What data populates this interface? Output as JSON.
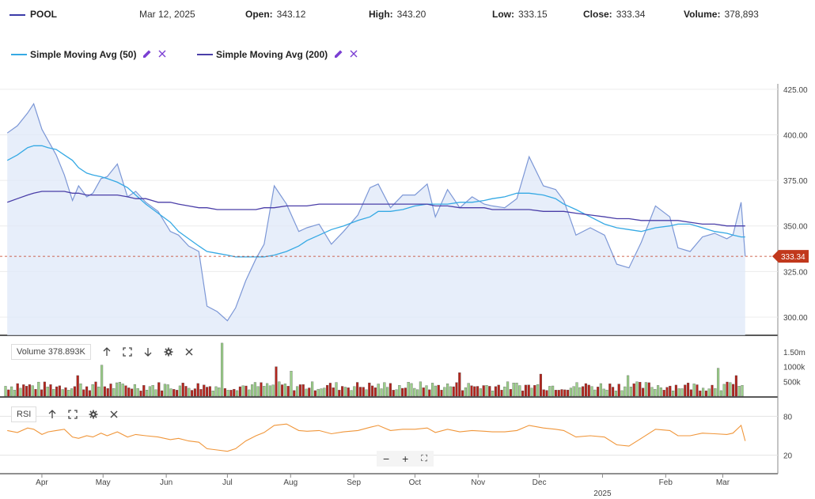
{
  "header": {
    "symbol": "POOL",
    "date": "Mar 12, 2025",
    "open_label": "Open:",
    "open": "343.12",
    "high_label": "High:",
    "high": "343.20",
    "low_label": "Low:",
    "low": "333.15",
    "close_label": "Close:",
    "close": "333.34",
    "volume_label": "Volume:",
    "volume": "378,893"
  },
  "legend": [
    {
      "label": "Simple Moving Avg (50)",
      "color": "#35a9e4"
    },
    {
      "label": "Simple Moving Avg (200)",
      "color": "#4a3ea8"
    }
  ],
  "colors": {
    "price_line": "#7c97d6",
    "price_fill": "#dfe8f8",
    "sma50": "#35a9e4",
    "sma200": "#4a3ea8",
    "rsi": "#f0963a",
    "vol_up": "#9ccf8a",
    "vol_down": "#b3261e",
    "last_tag": "#c1381c",
    "accent": "#7b3fd3"
  },
  "volume_pane": {
    "title": "Volume 378.893K",
    "ticks": [
      "1.50m",
      "1000k",
      "500k"
    ]
  },
  "rsi_pane": {
    "title": "RSI",
    "ticks": [
      "80",
      "20"
    ]
  },
  "price_axis": {
    "ticks": [
      "425.00",
      "400.00",
      "375.00",
      "350.00",
      "325.00",
      "300.00"
    ],
    "last_price": "333.34"
  },
  "x_axis": {
    "months": [
      "Apr",
      "May",
      "Jun",
      "Jul",
      "Aug",
      "Sep",
      "Oct",
      "Nov",
      "Dec",
      "2025",
      "Feb",
      "Mar"
    ],
    "year_label": "2025"
  },
  "zoom": {
    "minus": "−",
    "plus": "+",
    "reset": "⛶"
  },
  "chart_data": {
    "type": "line",
    "ylim": [
      290,
      428
    ],
    "dates": [
      "2024-03-15",
      "2024-03-20",
      "2024-03-25",
      "2024-03-28",
      "2024-04-01",
      "2024-04-04",
      "2024-04-08",
      "2024-04-12",
      "2024-04-16",
      "2024-04-19",
      "2024-04-23",
      "2024-04-26",
      "2024-04-30",
      "2024-05-03",
      "2024-05-08",
      "2024-05-13",
      "2024-05-17",
      "2024-05-22",
      "2024-05-28",
      "2024-06-03",
      "2024-06-07",
      "2024-06-12",
      "2024-06-17",
      "2024-06-21",
      "2024-06-26",
      "2024-07-01",
      "2024-07-05",
      "2024-07-10",
      "2024-07-15",
      "2024-07-19",
      "2024-07-24",
      "2024-07-30",
      "2024-08-05",
      "2024-08-09",
      "2024-08-15",
      "2024-08-21",
      "2024-08-27",
      "2024-09-03",
      "2024-09-09",
      "2024-09-13",
      "2024-09-19",
      "2024-09-25",
      "2024-10-01",
      "2024-10-07",
      "2024-10-11",
      "2024-10-17",
      "2024-10-23",
      "2024-10-29",
      "2024-11-04",
      "2024-11-08",
      "2024-11-14",
      "2024-11-20",
      "2024-11-26",
      "2024-12-03",
      "2024-12-09",
      "2024-12-13",
      "2024-12-19",
      "2024-12-26",
      "2025-01-02",
      "2025-01-08",
      "2025-01-14",
      "2025-01-20",
      "2025-01-27",
      "2025-02-03",
      "2025-02-07",
      "2025-02-13",
      "2025-02-19",
      "2025-02-25",
      "2025-03-03",
      "2025-03-06",
      "2025-03-10",
      "2025-03-12"
    ],
    "series": [
      {
        "values": [
          401,
          405,
          412,
          417,
          403,
          397,
          389,
          378,
          364,
          372,
          366,
          368,
          376,
          377,
          384,
          366,
          369,
          363,
          358,
          347,
          345,
          339,
          336,
          306,
          303,
          298,
          305,
          320,
          332,
          340,
          372,
          362,
          347,
          349,
          351,
          340,
          347,
          356,
          371,
          373,
          360,
          367,
          367,
          373,
          355,
          370,
          360,
          366,
          362,
          361,
          360,
          365,
          388,
          372,
          370,
          364,
          345,
          349,
          345,
          329,
          327,
          341,
          361,
          355,
          338,
          336,
          344,
          346,
          343,
          345,
          363,
          333.34
        ]
      },
      {
        "name": "Simple Moving Avg (50)",
        "values": [
          386,
          389,
          393,
          394,
          394,
          393,
          392,
          389,
          386,
          382,
          379,
          378,
          377,
          376,
          374,
          371,
          367,
          362,
          357,
          352,
          347,
          343,
          339,
          336,
          335,
          334,
          333,
          333,
          333,
          333,
          334,
          336,
          339,
          342,
          345,
          348,
          350,
          353,
          355,
          358,
          358,
          359,
          361,
          362,
          362,
          362,
          363,
          363,
          364,
          365,
          366,
          368,
          368,
          367,
          365,
          362,
          359,
          355,
          351,
          349,
          348,
          347,
          349,
          350,
          351,
          351,
          349,
          347,
          346,
          345,
          344,
          344
        ]
      },
      {
        "name": "Simple Moving Avg (200)",
        "values": [
          363,
          365,
          367,
          368,
          369,
          369,
          369,
          369,
          368,
          368,
          367,
          367,
          367,
          367,
          367,
          366,
          365,
          365,
          363,
          363,
          362,
          361,
          360,
          360,
          359,
          359,
          359,
          359,
          359,
          360,
          360,
          361,
          361,
          361,
          362,
          362,
          362,
          362,
          362,
          362,
          362,
          362,
          362,
          362,
          361,
          361,
          360,
          360,
          360,
          359,
          359,
          359,
          359,
          358,
          358,
          358,
          357,
          356,
          355,
          354,
          354,
          353,
          353,
          353,
          353,
          352,
          351,
          351,
          350,
          350,
          350,
          350
        ]
      }
    ],
    "volume": [
      {
        "date": "2024-03-20",
        "value": 430000
      },
      {
        "date": "2024-04-19",
        "value": 700000
      },
      {
        "date": "2024-05-01",
        "value": 1050000
      },
      {
        "date": "2024-06-28",
        "value": 1800000
      },
      {
        "date": "2024-07-25",
        "value": 1000000
      },
      {
        "date": "2024-08-01",
        "value": 850000
      },
      {
        "date": "2024-10-23",
        "value": 800000
      },
      {
        "date": "2024-12-02",
        "value": 750000
      },
      {
        "date": "2025-01-14",
        "value": 700000
      },
      {
        "date": "2025-02-27",
        "value": 950000
      },
      {
        "date": "2025-03-07",
        "value": 700000
      },
      {
        "date": "2025-03-12",
        "value": 378893
      }
    ],
    "rsi": [
      58,
      55,
      62,
      60,
      52,
      56,
      58,
      60,
      48,
      46,
      50,
      48,
      54,
      50,
      56,
      48,
      52,
      50,
      48,
      44,
      46,
      42,
      40,
      30,
      28,
      26,
      30,
      42,
      50,
      55,
      66,
      68,
      58,
      57,
      58,
      53,
      56,
      58,
      63,
      66,
      58,
      60,
      60,
      62,
      55,
      60,
      56,
      58,
      57,
      56,
      56,
      58,
      66,
      62,
      60,
      58,
      48,
      50,
      48,
      36,
      34,
      46,
      60,
      58,
      50,
      50,
      54,
      53,
      52,
      54,
      66,
      42
    ]
  }
}
